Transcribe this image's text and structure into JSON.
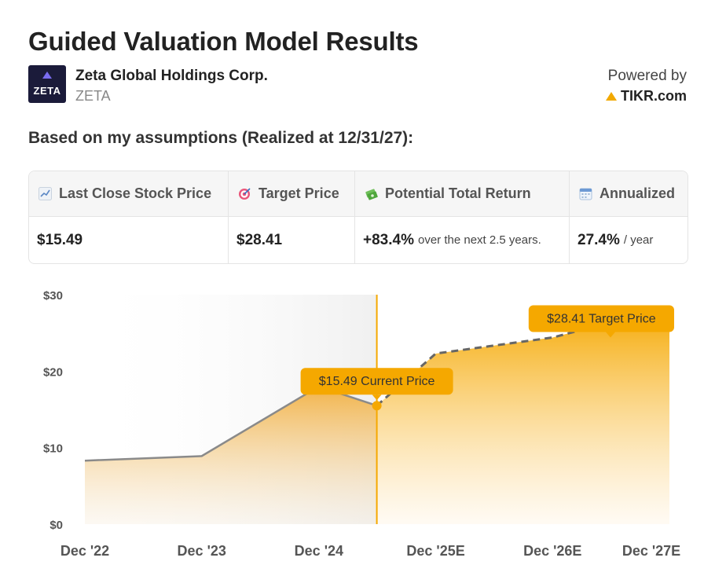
{
  "header": {
    "title": "Guided Valuation Model Results",
    "company_name": "Zeta Global Holdings Corp.",
    "ticker": "ZETA",
    "logo_text": "ZETA",
    "powered_by": "Powered by",
    "brand": "TIKR.com",
    "subtitle": "Based on my assumptions (Realized at 12/31/27):"
  },
  "summary_table": {
    "columns": [
      {
        "icon": "chart-icon",
        "label": "Last Close Stock Price",
        "value": "$15.49",
        "suffix": ""
      },
      {
        "icon": "target-icon",
        "label": "Target Price",
        "value": "$28.41",
        "suffix": ""
      },
      {
        "icon": "money-icon",
        "label": "Potential Total Return",
        "value": "+83.4%",
        "suffix": "over the next 2.5 years."
      },
      {
        "icon": "calendar-icon",
        "label": "Annualized",
        "value": "27.4%",
        "suffix": "/ year"
      }
    ]
  },
  "colors": {
    "accent": "#f5a800",
    "historical_line": "#8a8a8a",
    "projection_dash": "#666666"
  },
  "chart_data": {
    "type": "area",
    "y_ticks": [
      "$0",
      "$10",
      "$20",
      "$30"
    ],
    "ylim": [
      0,
      30
    ],
    "x_ticks": [
      "Dec '22",
      "Dec '23",
      "Dec '24",
      "Dec '25E",
      "Dec '26E",
      "Dec '27E"
    ],
    "historical": [
      {
        "x": "2022-12-31",
        "y": 8.3
      },
      {
        "x": "2023-12-31",
        "y": 8.9
      },
      {
        "x": "2024-12-31",
        "y": 18.0
      },
      {
        "x": "2025-06-30",
        "y": 15.49
      }
    ],
    "projection": [
      {
        "x": "2025-06-30",
        "y": 15.49
      },
      {
        "x": "2025-12-31",
        "y": 22.3
      },
      {
        "x": "2026-12-31",
        "y": 24.4
      },
      {
        "x": "2027-12-31",
        "y": 28.41
      }
    ],
    "annotations": {
      "current": "$15.49 Current Price",
      "target": "$28.41 Target Price"
    }
  }
}
